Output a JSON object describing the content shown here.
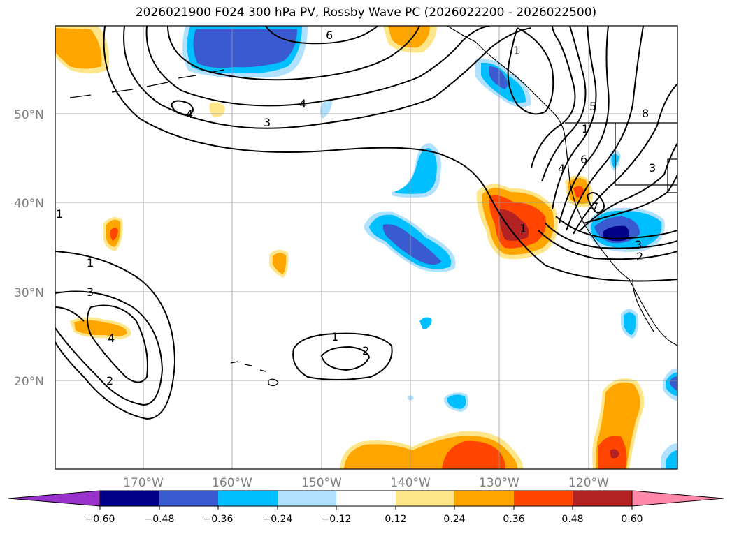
{
  "title": "2026021900 F024 300 hPa PV, Rossby Wave PC (2026022200 - 2026022500)",
  "lat_labels": [
    "50°N",
    "40°N",
    "30°N",
    "20°N"
  ],
  "lon_labels": [
    "170°W",
    "160°W",
    "150°W",
    "140°W",
    "130°W",
    "120°W"
  ],
  "colorbar": {
    "ticks": [
      "−0.60",
      "−0.48",
      "−0.36",
      "−0.24",
      "−0.12",
      "0.12",
      "0.24",
      "0.36",
      "0.48",
      "0.60"
    ],
    "colors": [
      "#9932cc",
      "#00008b",
      "#3a5bd0",
      "#00bfff",
      "#b0e2ff",
      "#ffffff",
      "#ffe68a",
      "#ffa500",
      "#ff4500",
      "#b22222",
      "#ff88aa"
    ]
  },
  "contour_labels": [
    "6",
    "4",
    "3",
    "1",
    "4",
    "5",
    "1",
    "6",
    "8",
    "3",
    "4",
    "7",
    "3",
    "2",
    "1",
    "1",
    "3",
    "4",
    "2",
    "1",
    "2",
    "1"
  ],
  "shading_colors": {
    "light_blue": "#b0e2ff",
    "blue": "#00bfff",
    "mid_blue": "#3a5bd0",
    "dark_blue": "#00008b",
    "yellow": "#ffe68a",
    "orange": "#ffa500",
    "red_orange": "#ff4500",
    "dark_red": "#b22222"
  }
}
